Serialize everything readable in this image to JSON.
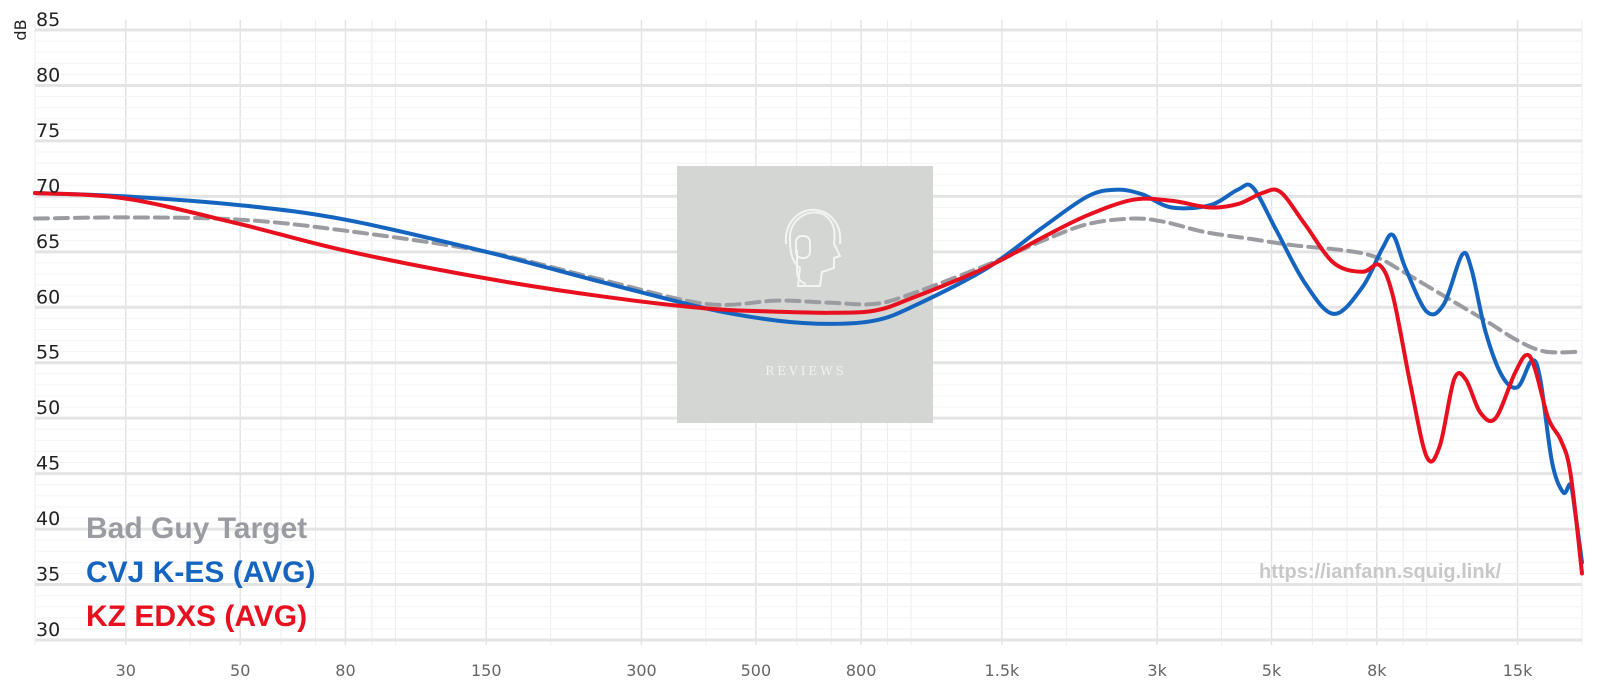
{
  "chart_data": {
    "type": "line",
    "title": "",
    "xlabel": "",
    "ylabel": "dB",
    "xscale": "log",
    "xlim": [
      20,
      20000
    ],
    "ylim": [
      30,
      85
    ],
    "yticks": [
      30,
      35,
      40,
      45,
      50,
      55,
      60,
      65,
      70,
      75,
      80,
      85
    ],
    "xtick_values": [
      30,
      50,
      80,
      150,
      300,
      500,
      800,
      1500,
      3000,
      5000,
      8000,
      15000
    ],
    "xtick_labels": [
      "30",
      "50",
      "80",
      "150",
      "300",
      "500",
      "800",
      "1.5k",
      "3k",
      "5k",
      "8k",
      "15k"
    ],
    "grid": true,
    "legend_position": "bottom-left",
    "series": [
      {
        "name": "Bad Guy Target",
        "color": "#9a9ca2",
        "style": "dashed",
        "points": [
          [
            20,
            68
          ],
          [
            30,
            68.1
          ],
          [
            50,
            67.9
          ],
          [
            80,
            66.9
          ],
          [
            150,
            65
          ],
          [
            250,
            62.5
          ],
          [
            400,
            60.3
          ],
          [
            550,
            60.6
          ],
          [
            700,
            60.4
          ],
          [
            850,
            60.3
          ],
          [
            1000,
            61.2
          ],
          [
            1400,
            63.8
          ],
          [
            1800,
            66
          ],
          [
            2200,
            67.5
          ],
          [
            2700,
            68
          ],
          [
            3100,
            67.7
          ],
          [
            3700,
            66.8
          ],
          [
            4500,
            66.2
          ],
          [
            5500,
            65.6
          ],
          [
            7000,
            65.1
          ],
          [
            8000,
            64.5
          ],
          [
            9000,
            63.2
          ],
          [
            11000,
            60.8
          ],
          [
            13000,
            58.8
          ],
          [
            15000,
            57
          ],
          [
            17000,
            56
          ],
          [
            20000,
            56
          ]
        ]
      },
      {
        "name": "CVJ K-ES (AVG)",
        "color": "#1565c0",
        "style": "solid",
        "points": [
          [
            20,
            70.3
          ],
          [
            30,
            70
          ],
          [
            50,
            69.2
          ],
          [
            80,
            67.9
          ],
          [
            150,
            65
          ],
          [
            250,
            62.3
          ],
          [
            400,
            59.9
          ],
          [
            550,
            58.8
          ],
          [
            700,
            58.5
          ],
          [
            850,
            58.8
          ],
          [
            1000,
            60
          ],
          [
            1400,
            63.5
          ],
          [
            1800,
            67.2
          ],
          [
            2200,
            70
          ],
          [
            2500,
            70.6
          ],
          [
            2800,
            70.2
          ],
          [
            3200,
            69
          ],
          [
            3800,
            69.2
          ],
          [
            4300,
            70.6
          ],
          [
            4600,
            70.8
          ],
          [
            5100,
            67
          ],
          [
            5800,
            62.2
          ],
          [
            6600,
            59.4
          ],
          [
            7500,
            61.8
          ],
          [
            8200,
            65.3
          ],
          [
            8600,
            66.5
          ],
          [
            9100,
            63.5
          ],
          [
            10000,
            59.6
          ],
          [
            10800,
            60.3
          ],
          [
            11700,
            64.7
          ],
          [
            12200,
            63.5
          ],
          [
            13000,
            57.8
          ],
          [
            14000,
            53.8
          ],
          [
            15000,
            52.8
          ],
          [
            16000,
            55.2
          ],
          [
            16600,
            53.5
          ],
          [
            17500,
            46
          ],
          [
            18400,
            43.3
          ],
          [
            19000,
            44
          ],
          [
            19400,
            41.5
          ],
          [
            20000,
            37
          ]
        ]
      },
      {
        "name": "KZ EDXS (AVG)",
        "color": "#e8101f",
        "style": "solid",
        "points": [
          [
            20,
            70.3
          ],
          [
            30,
            69.8
          ],
          [
            50,
            67.5
          ],
          [
            80,
            65.1
          ],
          [
            150,
            62.6
          ],
          [
            250,
            61
          ],
          [
            400,
            59.9
          ],
          [
            550,
            59.6
          ],
          [
            700,
            59.5
          ],
          [
            850,
            59.7
          ],
          [
            1000,
            60.8
          ],
          [
            1400,
            63.6
          ],
          [
            1800,
            66.3
          ],
          [
            2200,
            68.3
          ],
          [
            2700,
            69.7
          ],
          [
            3200,
            69.6
          ],
          [
            3800,
            69
          ],
          [
            4300,
            69.3
          ],
          [
            4800,
            70.3
          ],
          [
            5200,
            70.4
          ],
          [
            5800,
            67.5
          ],
          [
            6600,
            64
          ],
          [
            7500,
            63.2
          ],
          [
            8100,
            63.8
          ],
          [
            8600,
            61
          ],
          [
            9300,
            53
          ],
          [
            10000,
            46.5
          ],
          [
            10600,
            47.5
          ],
          [
            11300,
            53.5
          ],
          [
            11900,
            53.5
          ],
          [
            12700,
            50.5
          ],
          [
            13600,
            50
          ],
          [
            14800,
            54
          ],
          [
            15600,
            55.7
          ],
          [
            16200,
            54.5
          ],
          [
            17200,
            50
          ],
          [
            18200,
            48
          ],
          [
            19000,
            45
          ],
          [
            20000,
            36
          ]
        ]
      }
    ]
  },
  "watermark": {
    "logo_caption": "REVIEWS",
    "url": "https://ianfann.squig.link/"
  }
}
